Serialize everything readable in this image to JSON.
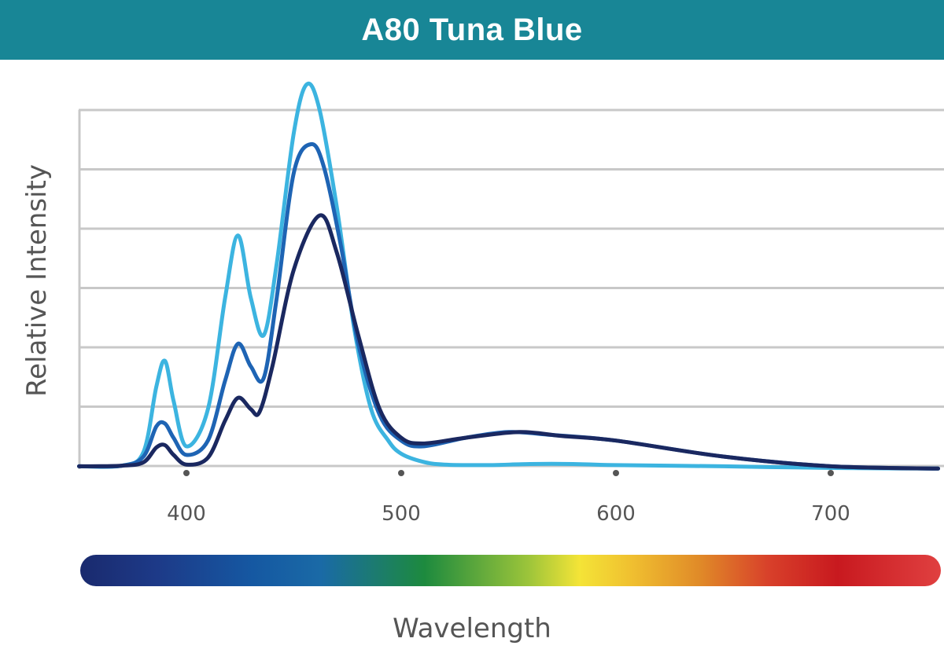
{
  "chart_data": {
    "type": "line",
    "title": "A80 Tuna Blue",
    "xlabel": "Wavelength",
    "ylabel": "Relative Intensity",
    "xlim": [
      350,
      750
    ],
    "ylim": [
      0,
      6.3
    ],
    "xticks": [
      400,
      500,
      600,
      700
    ],
    "grid": true,
    "legend": "none",
    "series": [
      {
        "color": "#3cb4e0",
        "x": [
          350,
          370,
          380,
          386,
          390,
          394,
          400,
          410,
          418,
          424,
          430,
          436,
          442,
          450,
          456,
          462,
          470,
          478,
          486,
          494,
          500,
          510,
          520,
          540,
          560,
          580,
          600,
          650,
          700,
          750
        ],
        "values": [
          0.05,
          0.06,
          0.3,
          1.45,
          1.9,
          1.2,
          0.4,
          1.05,
          3.0,
          4.1,
          3.0,
          2.35,
          3.6,
          5.9,
          6.75,
          6.3,
          4.6,
          2.5,
          1.05,
          0.5,
          0.27,
          0.13,
          0.08,
          0.07,
          0.09,
          0.09,
          0.07,
          0.05,
          0.02,
          0.01
        ]
      },
      {
        "color": "#1e64b4",
        "x": [
          350,
          370,
          380,
          386,
          390,
          394,
          400,
          410,
          418,
          424,
          430,
          436,
          442,
          450,
          458,
          464,
          472,
          480,
          490,
          500,
          510,
          530,
          550,
          570,
          600,
          650,
          700,
          750
        ],
        "values": [
          0.05,
          0.06,
          0.22,
          0.75,
          0.8,
          0.55,
          0.25,
          0.5,
          1.55,
          2.2,
          1.8,
          1.6,
          3.0,
          5.2,
          5.7,
          5.3,
          3.9,
          2.2,
          0.95,
          0.5,
          0.4,
          0.55,
          0.65,
          0.6,
          0.5,
          0.22,
          0.05,
          0.01
        ]
      },
      {
        "color": "#1a2860",
        "x": [
          350,
          370,
          380,
          386,
          390,
          394,
          400,
          410,
          418,
          424,
          430,
          434,
          440,
          450,
          462,
          470,
          480,
          490,
          500,
          510,
          530,
          555,
          575,
          600,
          650,
          700,
          750
        ],
        "values": [
          0.05,
          0.06,
          0.12,
          0.38,
          0.42,
          0.25,
          0.08,
          0.2,
          0.85,
          1.25,
          1.05,
          1.0,
          1.8,
          3.5,
          4.45,
          3.8,
          2.35,
          1.05,
          0.55,
          0.45,
          0.55,
          0.65,
          0.58,
          0.5,
          0.22,
          0.05,
          0.01
        ]
      }
    ],
    "spectrum_colors": [
      "#1a2a6e",
      "#1d3a88",
      "#1558a2",
      "#1a6aa6",
      "#1d8a3e",
      "#9bc43a",
      "#f4e437",
      "#f0c030",
      "#e08a28",
      "#d8402a",
      "#c8191f",
      "#e04040"
    ]
  }
}
